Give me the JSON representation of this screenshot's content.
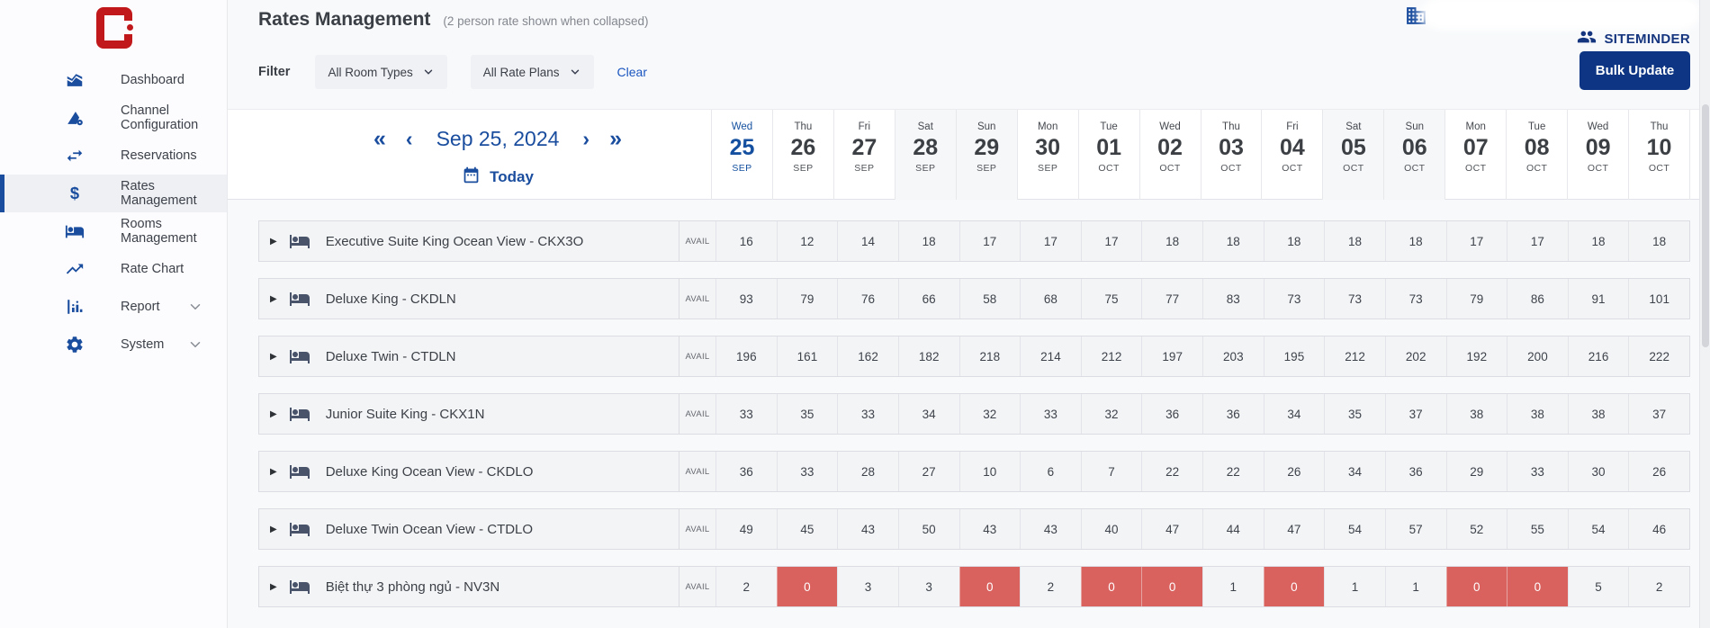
{
  "colors": {
    "accent_blue": "#1a4d9e",
    "brand_navy": "#16357f",
    "button_navy": "#0d3583",
    "red_cell": "#d9615e",
    "logo_red": "#c0181b"
  },
  "sidebar": {
    "items": [
      {
        "label": "Dashboard",
        "icon": "dashboard-icon",
        "active": false,
        "expandable": false
      },
      {
        "label": "Channel Configuration",
        "icon": "channel-configuration-icon",
        "active": false,
        "expandable": false
      },
      {
        "label": "Reservations",
        "icon": "reservations-icon",
        "active": false,
        "expandable": false
      },
      {
        "label": "Rates Management",
        "icon": "dollar-icon",
        "active": true,
        "expandable": false
      },
      {
        "label": "Rooms Management",
        "icon": "bed-icon",
        "active": false,
        "expandable": false
      },
      {
        "label": "Rate Chart",
        "icon": "rate-chart-icon",
        "active": false,
        "expandable": false
      },
      {
        "label": "Report",
        "icon": "report-icon",
        "active": false,
        "expandable": true
      },
      {
        "label": "System",
        "icon": "system-icon",
        "active": false,
        "expandable": true
      }
    ]
  },
  "header": {
    "title": "Rates Management",
    "subtitle": "(2 person rate shown when collapsed)",
    "brand": "SITEMINDER",
    "bulk_update_label": "Bulk Update"
  },
  "filter": {
    "label": "Filter",
    "room_types_value": "All Room Types",
    "rate_plans_value": "All Rate Plans",
    "clear_label": "Clear"
  },
  "calendar": {
    "current_date": "Sep 25, 2024",
    "today_label": "Today",
    "nav": {
      "fast_back": "«",
      "back": "‹",
      "forward": "›",
      "fast_forward": "»"
    },
    "columns": [
      {
        "dow": "Wed",
        "day": "25",
        "month": "SEP",
        "weekend": false,
        "current": true
      },
      {
        "dow": "Thu",
        "day": "26",
        "month": "SEP",
        "weekend": false,
        "current": false
      },
      {
        "dow": "Fri",
        "day": "27",
        "month": "SEP",
        "weekend": false,
        "current": false
      },
      {
        "dow": "Sat",
        "day": "28",
        "month": "SEP",
        "weekend": true,
        "current": false
      },
      {
        "dow": "Sun",
        "day": "29",
        "month": "SEP",
        "weekend": true,
        "current": false
      },
      {
        "dow": "Mon",
        "day": "30",
        "month": "SEP",
        "weekend": false,
        "current": false
      },
      {
        "dow": "Tue",
        "day": "01",
        "month": "OCT",
        "weekend": false,
        "current": false
      },
      {
        "dow": "Wed",
        "day": "02",
        "month": "OCT",
        "weekend": false,
        "current": false
      },
      {
        "dow": "Thu",
        "day": "03",
        "month": "OCT",
        "weekend": false,
        "current": false
      },
      {
        "dow": "Fri",
        "day": "04",
        "month": "OCT",
        "weekend": false,
        "current": false
      },
      {
        "dow": "Sat",
        "day": "05",
        "month": "OCT",
        "weekend": true,
        "current": false
      },
      {
        "dow": "Sun",
        "day": "06",
        "month": "OCT",
        "weekend": true,
        "current": false
      },
      {
        "dow": "Mon",
        "day": "07",
        "month": "OCT",
        "weekend": false,
        "current": false
      },
      {
        "dow": "Tue",
        "day": "08",
        "month": "OCT",
        "weekend": false,
        "current": false
      },
      {
        "dow": "Wed",
        "day": "09",
        "month": "OCT",
        "weekend": false,
        "current": false
      },
      {
        "dow": "Thu",
        "day": "10",
        "month": "OCT",
        "weekend": false,
        "current": false
      }
    ]
  },
  "grid": {
    "avail_label": "AVAIL",
    "expander_icon": "▶",
    "rows": [
      {
        "name": "Executive Suite King Ocean View - CKX3O",
        "values": [
          16,
          12,
          14,
          18,
          17,
          17,
          17,
          18,
          18,
          18,
          18,
          18,
          17,
          17,
          18,
          18
        ]
      },
      {
        "name": "Deluxe King - CKDLN",
        "values": [
          93,
          79,
          76,
          66,
          58,
          68,
          75,
          77,
          83,
          73,
          73,
          73,
          79,
          86,
          91,
          101
        ]
      },
      {
        "name": "Deluxe Twin - CTDLN",
        "values": [
          196,
          161,
          162,
          182,
          218,
          214,
          212,
          197,
          203,
          195,
          212,
          202,
          192,
          200,
          216,
          222
        ]
      },
      {
        "name": "Junior Suite King - CKX1N",
        "values": [
          33,
          35,
          33,
          34,
          32,
          33,
          32,
          36,
          36,
          34,
          35,
          37,
          38,
          38,
          38,
          37
        ]
      },
      {
        "name": "Deluxe King Ocean View - CKDLO",
        "values": [
          36,
          33,
          28,
          27,
          10,
          6,
          7,
          22,
          22,
          26,
          34,
          36,
          29,
          33,
          30,
          26
        ]
      },
      {
        "name": "Deluxe Twin Ocean View - CTDLO",
        "values": [
          49,
          45,
          43,
          50,
          43,
          43,
          40,
          47,
          44,
          47,
          54,
          57,
          52,
          55,
          54,
          46
        ]
      },
      {
        "name": "Biệt thự 3 phòng ngủ - NV3N",
        "values": [
          2,
          0,
          3,
          3,
          0,
          2,
          0,
          0,
          1,
          0,
          1,
          1,
          0,
          0,
          5,
          2
        ]
      }
    ]
  }
}
